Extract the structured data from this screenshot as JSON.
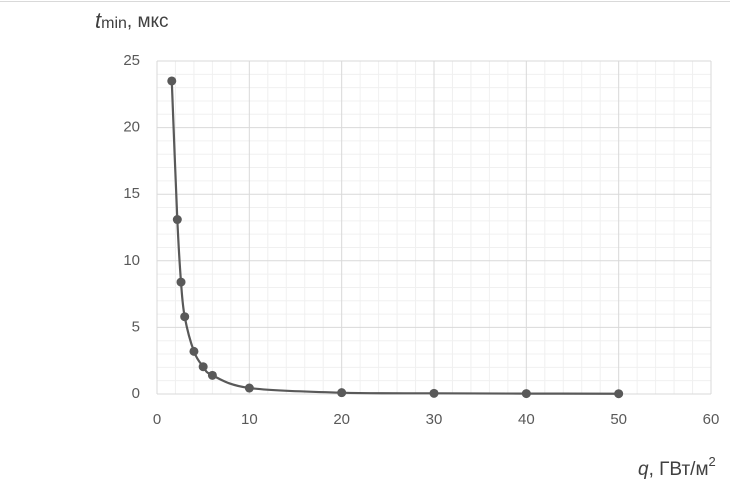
{
  "chart_data": {
    "type": "scatter",
    "ylabel": {
      "symbol": "t",
      "subscript": "min",
      "unit": ", мкс"
    },
    "xlabel": {
      "symbol": "q",
      "unit": ", ГВт/м",
      "superscript": "2"
    },
    "x": [
      1.6,
      2.2,
      2.6,
      3,
      4,
      5,
      6,
      10,
      20,
      30,
      40,
      50
    ],
    "series": [
      {
        "color": "#595959",
        "values": [
          23.5,
          13.1,
          8.4,
          5.8,
          3.2,
          2.05,
          1.4,
          0.45,
          0.1,
          0.05,
          0.03,
          0.02
        ]
      }
    ],
    "xlim": [
      0,
      60
    ],
    "xticks": [
      0,
      10,
      20,
      30,
      40,
      50,
      60
    ],
    "ylim": [
      0,
      25
    ],
    "yticks": [
      0,
      5,
      10,
      15,
      20,
      25
    ],
    "grid": true,
    "minor_grid": true,
    "smooth": true
  }
}
